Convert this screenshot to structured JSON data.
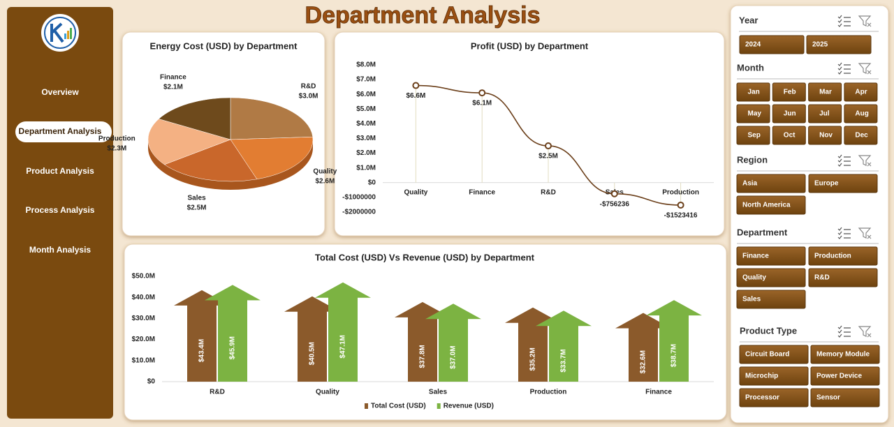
{
  "header": {
    "title": "Department Analysis"
  },
  "nav": {
    "items": [
      "Overview",
      "Department Analysis",
      "Product Analysis",
      "Process Analysis",
      "Month Analysis"
    ],
    "active": 1
  },
  "slicers": [
    {
      "title": "Year",
      "items": [
        "2024",
        "2025"
      ]
    },
    {
      "title": "Month",
      "items": [
        "Jan",
        "Feb",
        "Mar",
        "Apr",
        "May",
        "Jun",
        "Jul",
        "Aug",
        "Sep",
        "Oct",
        "Nov",
        "Dec"
      ]
    },
    {
      "title": "Region",
      "items": [
        "Asia",
        "Europe",
        "North America"
      ]
    },
    {
      "title": "Department",
      "items": [
        "Finance",
        "Production",
        "Quality",
        "R&D",
        "Sales"
      ]
    },
    {
      "title": "Product Type",
      "items": [
        "Circuit Board",
        "Memory Module",
        "Microchip",
        "Power Device",
        "Processor",
        "Sensor"
      ]
    }
  ],
  "chart_data": [
    {
      "type": "pie",
      "title": "Energy Cost (USD) by Department",
      "categories": [
        "R&D",
        "Quality",
        "Sales",
        "Production",
        "Finance"
      ],
      "values": [
        3.0,
        2.6,
        2.5,
        2.3,
        2.1
      ],
      "value_labels": [
        "$3.0M",
        "$2.6M",
        "$2.5M",
        "$2.3M",
        "$2.1M"
      ],
      "colors": [
        "#b07a45",
        "#e27d32",
        "#c9672b",
        "#f4b183",
        "#6e4a1c"
      ]
    },
    {
      "type": "line",
      "title": "Profit (USD) by Department",
      "categories": [
        "Quality",
        "Finance",
        "R&D",
        "Sales",
        "Production"
      ],
      "values": [
        6600000,
        6100000,
        2500000,
        -756236,
        -1523416
      ],
      "value_labels": [
        "$6.6M",
        "$6.1M",
        "$2.5M",
        "-$756236",
        "-$1523416"
      ],
      "color": "#6b3f1a",
      "ylim": [
        -2000000,
        8000000
      ],
      "yticks": [
        {
          "value": 8000000,
          "label": "$8.0M"
        },
        {
          "value": 7000000,
          "label": "$7.0M"
        },
        {
          "value": 6000000,
          "label": "$6.0M"
        },
        {
          "value": 5000000,
          "label": "$5.0M"
        },
        {
          "value": 4000000,
          "label": "$4.0M"
        },
        {
          "value": 3000000,
          "label": "$3.0M"
        },
        {
          "value": 2000000,
          "label": "$2.0M"
        },
        {
          "value": 1000000,
          "label": "$1.0M"
        },
        {
          "value": 0,
          "label": "$0"
        },
        {
          "value": -1000000,
          "label": "-$1000000"
        },
        {
          "value": -2000000,
          "label": "-$2000000"
        }
      ]
    },
    {
      "type": "bar",
      "title": "Total Cost (USD) Vs Revenue (USD) by Department",
      "categories": [
        "R&D",
        "Quality",
        "Sales",
        "Production",
        "Finance"
      ],
      "series": [
        {
          "name": "Total Cost (USD)",
          "color": "#8b5a2b",
          "values": [
            43400000,
            40500000,
            37800000,
            35200000,
            32600000
          ],
          "value_labels": [
            "$43.4M",
            "$40.5M",
            "$37.8M",
            "$35.2M",
            "$32.6M"
          ]
        },
        {
          "name": "Revenue (USD)",
          "color": "#7cb342",
          "values": [
            45900000,
            47100000,
            37000000,
            33700000,
            38700000
          ],
          "value_labels": [
            "$45.9M",
            "$47.1M",
            "$37.0M",
            "$33.7M",
            "$38.7M"
          ]
        }
      ],
      "ylim": [
        0,
        50000000
      ],
      "yticks": [
        {
          "value": 0,
          "label": "$0"
        },
        {
          "value": 10000000,
          "label": "$10.0M"
        },
        {
          "value": 20000000,
          "label": "$20.0M"
        },
        {
          "value": 30000000,
          "label": "$30.0M"
        },
        {
          "value": 40000000,
          "label": "$40.0M"
        },
        {
          "value": 50000000,
          "label": "$50.0M"
        }
      ],
      "legend": "bottom"
    }
  ]
}
